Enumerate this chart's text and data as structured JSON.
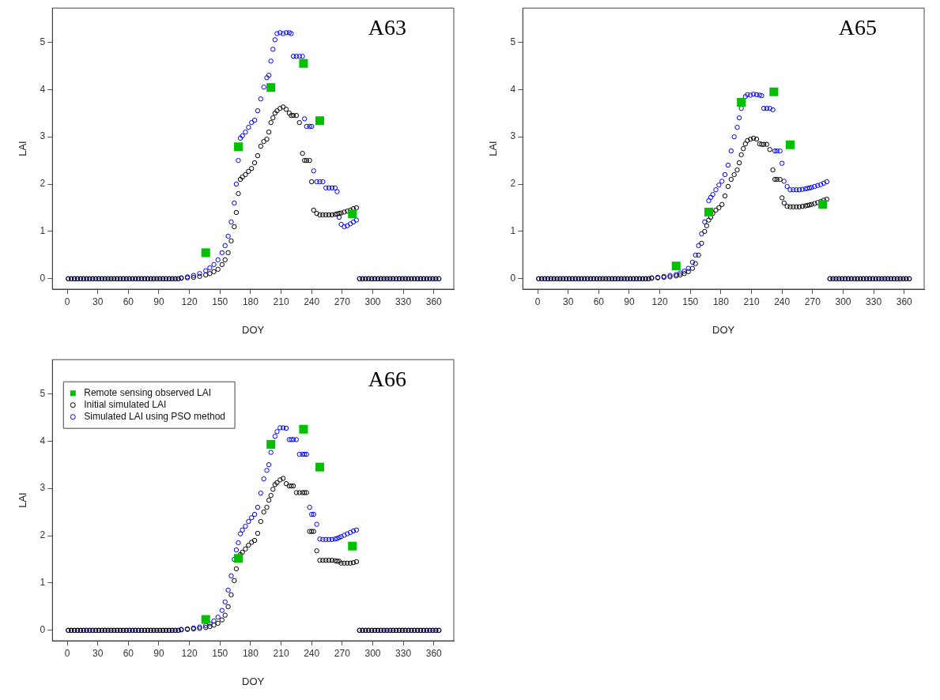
{
  "chart_data": [
    {
      "type": "scatter",
      "title": "A63",
      "xlabel": "DOY",
      "ylabel": "LAI",
      "xlim": [
        -14.6,
        379.6
      ],
      "ylim": [
        -0.22,
        5.72
      ],
      "xticks": [
        0,
        30,
        60,
        90,
        120,
        150,
        180,
        210,
        240,
        270,
        300,
        330,
        360
      ],
      "yticks": [
        0,
        1,
        2,
        3,
        4,
        5
      ],
      "grid": false,
      "x": [
        1,
        4,
        7,
        10,
        13,
        16,
        19,
        22,
        25,
        28,
        31,
        34,
        37,
        40,
        43,
        46,
        49,
        52,
        55,
        58,
        61,
        64,
        67,
        70,
        73,
        76,
        79,
        82,
        85,
        88,
        91,
        94,
        97,
        100,
        103,
        106,
        109,
        112,
        118,
        124,
        130,
        136,
        140,
        144,
        148,
        152,
        155,
        158,
        161,
        164,
        166,
        168,
        170,
        172,
        175,
        178,
        181,
        184,
        187,
        190,
        193,
        196,
        198,
        200,
        202,
        204,
        206,
        209,
        212,
        215,
        218,
        220,
        222,
        225,
        228,
        231,
        233,
        235,
        238,
        240,
        242,
        245,
        248,
        251,
        254,
        257,
        260,
        263,
        265,
        267,
        269,
        272,
        275,
        278,
        281,
        284,
        287,
        290,
        293,
        296,
        299,
        302,
        305,
        308,
        311,
        314,
        317,
        320,
        323,
        326,
        329,
        332,
        335,
        338,
        341,
        344,
        347,
        350,
        353,
        356,
        359,
        362,
        365
      ],
      "series": [
        {
          "color": "#00c000",
          "marker": "square",
          "x": [
            136,
            168,
            200,
            232,
            248,
            280
          ],
          "values": [
            0.55,
            2.79,
            4.04,
            4.55,
            3.34,
            1.37
          ]
        },
        {
          "color": "#000000",
          "marker": "circle",
          "values": [
            0,
            0,
            0,
            0,
            0,
            0,
            0,
            0,
            0,
            0,
            0,
            0,
            0,
            0,
            0,
            0,
            0,
            0,
            0,
            0,
            0,
            0,
            0,
            0,
            0,
            0,
            0,
            0,
            0,
            0,
            0,
            0,
            0,
            0,
            0,
            0,
            0,
            0.01,
            0.02,
            0.03,
            0.05,
            0.08,
            0.11,
            0.15,
            0.2,
            0.3,
            0.4,
            0.55,
            0.8,
            1.1,
            1.4,
            1.8,
            2.1,
            2.15,
            2.2,
            2.27,
            2.33,
            2.45,
            2.6,
            2.8,
            2.9,
            2.95,
            3.1,
            3.3,
            3.4,
            3.5,
            3.55,
            3.6,
            3.63,
            3.58,
            3.5,
            3.45,
            3.45,
            3.45,
            3.3,
            2.65,
            2.5,
            2.5,
            2.5,
            2.05,
            1.45,
            1.38,
            1.35,
            1.35,
            1.35,
            1.35,
            1.35,
            1.36,
            1.37,
            1.38,
            1.39,
            1.41,
            1.43,
            1.45,
            1.48,
            1.5,
            0,
            0,
            0,
            0,
            0,
            0,
            0,
            0,
            0,
            0,
            0,
            0,
            0,
            0,
            0,
            0,
            0,
            0,
            0,
            0,
            0,
            0,
            0,
            0,
            0,
            0,
            0
          ]
        },
        {
          "color": "#0000ff",
          "marker": "circle",
          "values": [
            0,
            0,
            0,
            0,
            0,
            0,
            0,
            0,
            0,
            0,
            0,
            0,
            0,
            0,
            0,
            0,
            0,
            0,
            0,
            0,
            0,
            0,
            0,
            0,
            0,
            0,
            0,
            0,
            0,
            0,
            0,
            0,
            0,
            0,
            0,
            0,
            0,
            0.02,
            0.04,
            0.07,
            0.11,
            0.17,
            0.23,
            0.3,
            0.4,
            0.55,
            0.7,
            0.9,
            1.2,
            1.6,
            2.0,
            2.5,
            2.97,
            3.02,
            3.1,
            3.2,
            3.3,
            3.35,
            3.55,
            3.8,
            4.05,
            4.25,
            4.3,
            4.6,
            4.85,
            5.05,
            5.18,
            5.2,
            5.18,
            5.2,
            5.2,
            5.18,
            4.7,
            4.7,
            4.7,
            4.7,
            3.38,
            3.22,
            3.22,
            3.22,
            2.28,
            2.05,
            2.05,
            2.05,
            1.92,
            1.92,
            1.92,
            1.92,
            1.84,
            1.3,
            1.15,
            1.1,
            1.12,
            1.16,
            1.2,
            1.24,
            0,
            0,
            0,
            0,
            0,
            0,
            0,
            0,
            0,
            0,
            0,
            0,
            0,
            0,
            0,
            0,
            0,
            0,
            0,
            0,
            0,
            0,
            0,
            0,
            0,
            0,
            0
          ]
        }
      ]
    },
    {
      "type": "scatter",
      "title": "A65",
      "xlabel": "DOY",
      "ylabel": "LAI",
      "xlim": [
        -14.6,
        379.6
      ],
      "ylim": [
        -0.22,
        5.72
      ],
      "xticks": [
        0,
        30,
        60,
        90,
        120,
        150,
        180,
        210,
        240,
        270,
        300,
        330,
        360
      ],
      "yticks": [
        0,
        1,
        2,
        3,
        4,
        5
      ],
      "grid": false,
      "x": [
        1,
        4,
        7,
        10,
        13,
        16,
        19,
        22,
        25,
        28,
        31,
        34,
        37,
        40,
        43,
        46,
        49,
        52,
        55,
        58,
        61,
        64,
        67,
        70,
        73,
        76,
        79,
        82,
        85,
        88,
        91,
        94,
        97,
        100,
        103,
        106,
        109,
        112,
        118,
        124,
        130,
        136,
        140,
        144,
        148,
        152,
        155,
        158,
        161,
        164,
        166,
        168,
        170,
        172,
        175,
        178,
        181,
        184,
        187,
        190,
        193,
        196,
        198,
        200,
        202,
        204,
        206,
        209,
        212,
        215,
        218,
        220,
        222,
        225,
        228,
        231,
        233,
        235,
        238,
        240,
        242,
        245,
        248,
        251,
        254,
        257,
        260,
        263,
        265,
        267,
        269,
        272,
        275,
        278,
        281,
        284,
        287,
        290,
        293,
        296,
        299,
        302,
        305,
        308,
        311,
        314,
        317,
        320,
        323,
        326,
        329,
        332,
        335,
        338,
        341,
        344,
        347,
        350,
        353,
        356,
        359,
        362,
        365
      ],
      "series": [
        {
          "color": "#00c000",
          "marker": "square",
          "x": [
            136,
            168,
            200,
            232,
            248,
            280
          ],
          "values": [
            0.27,
            1.41,
            3.73,
            3.95,
            2.83,
            1.57
          ]
        },
        {
          "color": "#000000",
          "marker": "circle",
          "values": [
            0,
            0,
            0,
            0,
            0,
            0,
            0,
            0,
            0,
            0,
            0,
            0,
            0,
            0,
            0,
            0,
            0,
            0,
            0,
            0,
            0,
            0,
            0,
            0,
            0,
            0,
            0,
            0,
            0,
            0,
            0,
            0,
            0,
            0,
            0,
            0,
            0,
            0.01,
            0.02,
            0.03,
            0.04,
            0.06,
            0.08,
            0.11,
            0.15,
            0.22,
            0.32,
            0.5,
            0.75,
            1.0,
            1.12,
            1.24,
            1.3,
            1.38,
            1.45,
            1.5,
            1.57,
            1.75,
            1.95,
            2.1,
            2.2,
            2.3,
            2.45,
            2.62,
            2.75,
            2.85,
            2.92,
            2.95,
            2.97,
            2.95,
            2.85,
            2.84,
            2.84,
            2.84,
            2.73,
            2.3,
            2.1,
            2.1,
            2.1,
            1.71,
            1.6,
            1.53,
            1.52,
            1.52,
            1.52,
            1.52,
            1.53,
            1.54,
            1.55,
            1.56,
            1.57,
            1.59,
            1.61,
            1.63,
            1.66,
            1.68,
            0,
            0,
            0,
            0,
            0,
            0,
            0,
            0,
            0,
            0,
            0,
            0,
            0,
            0,
            0,
            0,
            0,
            0,
            0,
            0,
            0,
            0,
            0,
            0,
            0,
            0,
            0
          ]
        },
        {
          "color": "#0000ff",
          "marker": "circle",
          "values": [
            0,
            0,
            0,
            0,
            0,
            0,
            0,
            0,
            0,
            0,
            0,
            0,
            0,
            0,
            0,
            0,
            0,
            0,
            0,
            0,
            0,
            0,
            0,
            0,
            0,
            0,
            0,
            0,
            0,
            0,
            0,
            0,
            0,
            0,
            0,
            0,
            0,
            0.02,
            0.03,
            0.05,
            0.07,
            0.09,
            0.12,
            0.16,
            0.22,
            0.35,
            0.5,
            0.7,
            0.95,
            1.2,
            null,
            1.65,
            1.72,
            1.78,
            1.88,
            1.98,
            2.06,
            2.2,
            2.4,
            2.7,
            3.0,
            3.2,
            3.4,
            3.6,
            3.75,
            3.85,
            3.89,
            3.88,
            3.9,
            3.89,
            3.88,
            3.87,
            3.6,
            3.6,
            3.6,
            3.57,
            2.7,
            2.7,
            2.7,
            2.44,
            2.06,
            1.95,
            1.88,
            1.88,
            1.88,
            1.88,
            1.89,
            1.9,
            1.91,
            1.92,
            1.93,
            1.95,
            1.97,
            1.99,
            2.02,
            2.05,
            0,
            0,
            0,
            0,
            0,
            0,
            0,
            0,
            0,
            0,
            0,
            0,
            0,
            0,
            0,
            0,
            0,
            0,
            0,
            0,
            0,
            0,
            0,
            0,
            0,
            0,
            0
          ]
        }
      ]
    },
    {
      "type": "scatter",
      "title": "A66",
      "xlabel": "DOY",
      "ylabel": "LAI",
      "xlim": [
        -14.6,
        379.6
      ],
      "ylim": [
        -0.22,
        5.72
      ],
      "xticks": [
        0,
        30,
        60,
        90,
        120,
        150,
        180,
        210,
        240,
        270,
        300,
        330,
        360
      ],
      "yticks": [
        0,
        1,
        2,
        3,
        4,
        5
      ],
      "grid": false,
      "legend": "top left",
      "x": [
        1,
        4,
        7,
        10,
        13,
        16,
        19,
        22,
        25,
        28,
        31,
        34,
        37,
        40,
        43,
        46,
        49,
        52,
        55,
        58,
        61,
        64,
        67,
        70,
        73,
        76,
        79,
        82,
        85,
        88,
        91,
        94,
        97,
        100,
        103,
        106,
        109,
        112,
        118,
        124,
        130,
        136,
        140,
        144,
        148,
        152,
        155,
        158,
        161,
        164,
        166,
        168,
        170,
        172,
        175,
        178,
        181,
        184,
        187,
        190,
        193,
        196,
        198,
        200,
        202,
        204,
        206,
        209,
        212,
        215,
        218,
        220,
        222,
        225,
        228,
        231,
        233,
        235,
        238,
        240,
        242,
        245,
        248,
        251,
        254,
        257,
        260,
        263,
        265,
        267,
        269,
        272,
        275,
        278,
        281,
        284,
        287,
        290,
        293,
        296,
        299,
        302,
        305,
        308,
        311,
        314,
        317,
        320,
        323,
        326,
        329,
        332,
        335,
        338,
        341,
        344,
        347,
        350,
        353,
        356,
        359,
        362,
        365
      ],
      "series": [
        {
          "name": "Remote sensing observed LAI",
          "color": "#00c000",
          "marker": "square",
          "x": [
            136,
            168,
            200,
            232,
            248,
            280
          ],
          "values": [
            0.23,
            1.52,
            3.93,
            4.25,
            3.45,
            1.78
          ]
        },
        {
          "name": "Initial simulated LAI",
          "color": "#000000",
          "marker": "circle",
          "values": [
            0,
            0,
            0,
            0,
            0,
            0,
            0,
            0,
            0,
            0,
            0,
            0,
            0,
            0,
            0,
            0,
            0,
            0,
            0,
            0,
            0,
            0,
            0,
            0,
            0,
            0,
            0,
            0,
            0,
            0,
            0,
            0,
            0,
            0,
            0,
            0,
            0,
            0.01,
            0.02,
            0.03,
            0.04,
            0.06,
            0.08,
            0.11,
            0.15,
            0.22,
            0.32,
            0.5,
            0.75,
            1.05,
            1.3,
            null,
            1.6,
            1.65,
            1.72,
            1.8,
            1.86,
            1.9,
            2.05,
            2.3,
            2.5,
            2.6,
            2.75,
            2.85,
            2.98,
            3.08,
            3.12,
            3.18,
            3.21,
            3.1,
            3.05,
            3.05,
            3.05,
            2.91,
            2.91,
            2.91,
            2.91,
            2.91,
            2.09,
            2.09,
            2.09,
            1.68,
            1.48,
            1.48,
            1.48,
            1.48,
            1.48,
            1.47,
            1.46,
            1.46,
            1.42,
            1.42,
            1.42,
            1.42,
            1.43,
            1.45,
            0,
            0,
            0,
            0,
            0,
            0,
            0,
            0,
            0,
            0,
            0,
            0,
            0,
            0,
            0,
            0,
            0,
            0,
            0,
            0,
            0,
            0,
            0,
            0,
            0,
            0,
            0
          ]
        },
        {
          "name": "Simulated LAI using PSO method",
          "color": "#0000ff",
          "marker": "circle",
          "values": [
            0,
            0,
            0,
            0,
            0,
            0,
            0,
            0,
            0,
            0,
            0,
            0,
            0,
            0,
            0,
            0,
            0,
            0,
            0,
            0,
            0,
            0,
            0,
            0,
            0,
            0,
            0,
            0,
            0,
            0,
            0,
            0,
            0,
            0,
            0,
            0,
            0,
            0.02,
            0.03,
            0.05,
            0.07,
            0.1,
            0.14,
            0.2,
            0.28,
            0.42,
            0.6,
            0.85,
            1.15,
            1.5,
            1.7,
            1.85,
            2.04,
            2.12,
            2.2,
            2.3,
            2.38,
            2.45,
            2.6,
            2.9,
            3.2,
            3.38,
            3.5,
            3.76,
            null,
            4.1,
            4.2,
            4.28,
            4.28,
            4.27,
            4.03,
            4.03,
            4.03,
            4.03,
            3.72,
            3.72,
            3.72,
            3.72,
            2.6,
            2.45,
            2.45,
            2.24,
            1.93,
            1.92,
            1.92,
            1.92,
            1.92,
            1.93,
            1.94,
            1.96,
            1.98,
            2.01,
            2.04,
            2.07,
            2.1,
            2.12,
            0,
            0,
            0,
            0,
            0,
            0,
            0,
            0,
            0,
            0,
            0,
            0,
            0,
            0,
            0,
            0,
            0,
            0,
            0,
            0,
            0,
            0,
            0,
            0,
            0,
            0,
            0
          ]
        }
      ]
    }
  ]
}
